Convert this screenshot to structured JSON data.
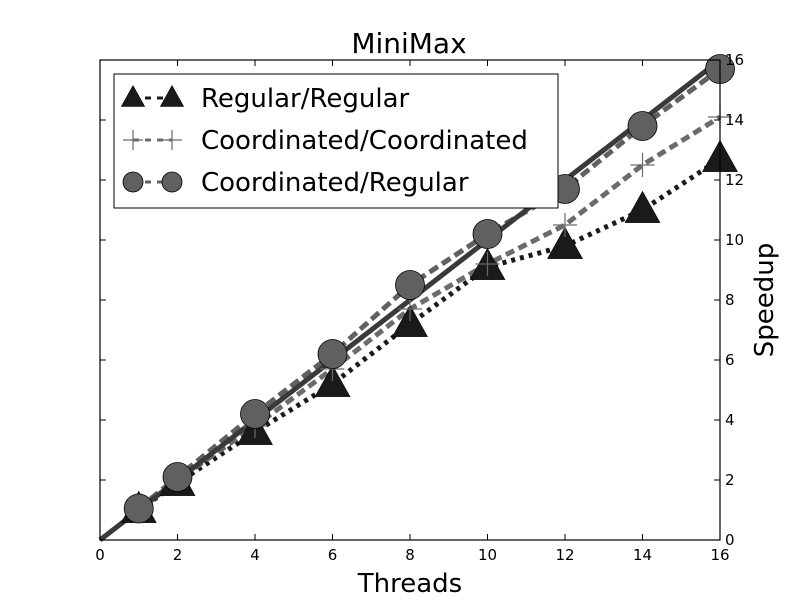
{
  "chart_data": {
    "type": "line",
    "title": "MiniMax",
    "xlabel": "Threads",
    "ylabel": "Speedup",
    "xlim": [
      0,
      16
    ],
    "ylim": [
      0,
      16
    ],
    "xticks": [
      0,
      2,
      4,
      6,
      8,
      10,
      12,
      14,
      16
    ],
    "yticks": [
      0,
      2,
      4,
      6,
      8,
      10,
      12,
      14,
      16
    ],
    "y_axis_side": "right",
    "grid": false,
    "legend_position": "top-left",
    "x": [
      1,
      2,
      4,
      6,
      8,
      10,
      12,
      14,
      16
    ],
    "ideal": {
      "x": [
        0,
        16
      ],
      "y": [
        0,
        16
      ],
      "color": "#3a3a3a"
    },
    "series": [
      {
        "name": "Regular/Regular",
        "marker": "triangle",
        "line_style": "dotted",
        "color": "#1a1a1a",
        "values": [
          1.0,
          1.9,
          3.6,
          5.2,
          7.2,
          9.1,
          9.8,
          11.0,
          12.7
        ]
      },
      {
        "name": "Coordinated/Coordinated",
        "marker": "plus",
        "line_style": "dashed",
        "color": "#6b6b6b",
        "values": [
          1.0,
          2.0,
          3.8,
          5.7,
          7.7,
          9.2,
          10.5,
          12.5,
          14.1
        ]
      },
      {
        "name": "Coordinated/Regular",
        "marker": "circle",
        "line_style": "dashed",
        "color": "#606060",
        "values": [
          1.05,
          2.1,
          4.2,
          6.2,
          8.5,
          10.2,
          11.7,
          13.8,
          15.7
        ]
      }
    ]
  }
}
